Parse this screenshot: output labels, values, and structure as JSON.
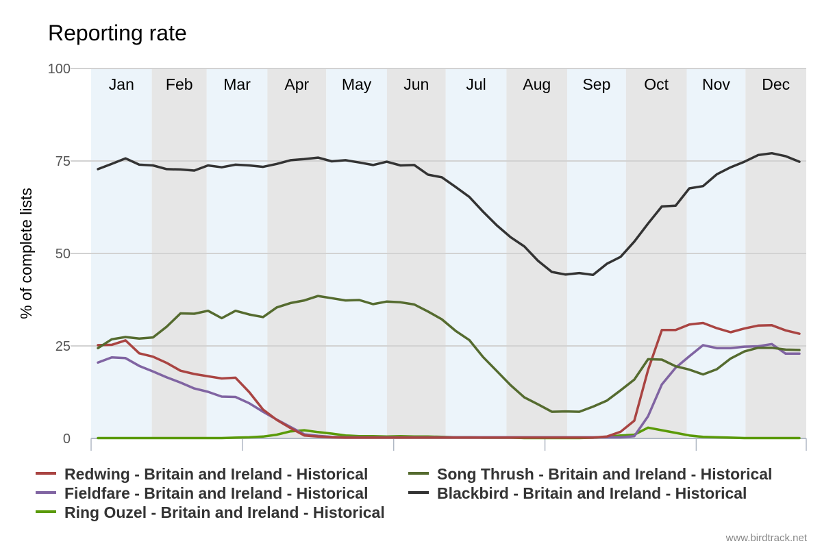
{
  "chart_data": {
    "type": "line",
    "title": "Reporting rate",
    "xlabel": "",
    "ylabel": "% of complete lists",
    "ylim": [
      0,
      100
    ],
    "yticks": [
      0,
      25,
      50,
      75,
      100
    ],
    "months": [
      "Jan",
      "Feb",
      "Mar",
      "Apr",
      "May",
      "Jun",
      "Jul",
      "Aug",
      "Sep",
      "Oct",
      "Nov",
      "Dec"
    ],
    "x_weeks": [
      1,
      2,
      3,
      4,
      5,
      6,
      7,
      8,
      9,
      10,
      11,
      12,
      13,
      14,
      15,
      16,
      17,
      18,
      19,
      20,
      21,
      22,
      23,
      24,
      25,
      26,
      27,
      28,
      29,
      30,
      31,
      32,
      33,
      34,
      35,
      36,
      37,
      38,
      39,
      40,
      41,
      42,
      43,
      44,
      45,
      46,
      47,
      48,
      49,
      50,
      51,
      52
    ],
    "band_colors": [
      "#ecf4fa",
      "#e6e6e6"
    ],
    "series": [
      {
        "name": "Redwing - Britain and Ireland - Historical",
        "color": "#a94442",
        "values": [
          25.2,
          25.3,
          26.5,
          23.0,
          22.1,
          20.4,
          18.3,
          17.4,
          16.8,
          16.2,
          16.4,
          12.5,
          7.8,
          5.0,
          2.8,
          0.8,
          0.5,
          0.3,
          0.2,
          0.2,
          0.2,
          0.2,
          0.2,
          0.2,
          0.2,
          0.2,
          0.2,
          0.2,
          0.2,
          0.2,
          0.2,
          0.2,
          0.2,
          0.2,
          0.2,
          0.2,
          0.2,
          0.5,
          1.8,
          4.8,
          18.5,
          29.3,
          29.3,
          30.8,
          31.2,
          29.8,
          28.7,
          29.7,
          30.5,
          30.6,
          29.2,
          28.3
        ]
      },
      {
        "name": "Song Thrush - Britain and Ireland - Historical",
        "color": "#556b2f",
        "values": [
          24.4,
          26.8,
          27.4,
          27.0,
          27.3,
          30.2,
          33.8,
          33.7,
          34.5,
          32.5,
          34.5,
          33.5,
          32.8,
          35.4,
          36.6,
          37.3,
          38.5,
          37.9,
          37.3,
          37.4,
          36.3,
          37.0,
          36.8,
          36.2,
          34.3,
          32.2,
          29.1,
          26.6,
          22.0,
          18.2,
          14.4,
          11.1,
          9.2,
          7.2,
          7.3,
          7.2,
          8.6,
          10.2,
          13.0,
          15.9,
          21.4,
          21.3,
          19.5,
          18.6,
          17.3,
          18.7,
          21.6,
          23.5,
          24.5,
          24.5,
          24.0,
          23.9
        ]
      },
      {
        "name": "Fieldfare - Britain and Ireland - Historical",
        "color": "#8064a2",
        "values": [
          20.5,
          21.9,
          21.7,
          19.6,
          18.1,
          16.5,
          15.1,
          13.5,
          12.6,
          11.3,
          11.2,
          9.5,
          7.2,
          5.1,
          3.1,
          1.1,
          0.7,
          0.4,
          0.3,
          0.3,
          0.3,
          0.3,
          0.3,
          0.3,
          0.3,
          0.3,
          0.3,
          0.3,
          0.3,
          0.3,
          0.3,
          0.3,
          0.3,
          0.3,
          0.3,
          0.3,
          0.3,
          0.3,
          0.3,
          0.6,
          6.0,
          14.6,
          19.1,
          22.2,
          25.2,
          24.4,
          24.4,
          24.8,
          24.9,
          25.5,
          22.9,
          22.9
        ]
      },
      {
        "name": "Blackbird - Britain and Ireland - Historical",
        "color": "#333333",
        "values": [
          72.8,
          74.2,
          75.7,
          74.0,
          73.8,
          72.8,
          72.7,
          72.4,
          73.8,
          73.3,
          74.0,
          73.8,
          73.4,
          74.2,
          75.2,
          75.5,
          75.9,
          74.9,
          75.2,
          74.6,
          73.9,
          74.8,
          73.8,
          73.9,
          71.3,
          70.6,
          68.0,
          65.3,
          61.3,
          57.6,
          54.4,
          51.9,
          48.0,
          45.0,
          44.3,
          44.7,
          44.2,
          47.2,
          49.1,
          53.2,
          58.1,
          62.7,
          62.9,
          67.6,
          68.2,
          71.4,
          73.3,
          74.8,
          76.6,
          77.1,
          76.3,
          74.8
        ]
      },
      {
        "name": "Ring Ouzel - Britain and Ireland - Historical",
        "color": "#5a9a08",
        "values": [
          0.1,
          0.1,
          0.1,
          0.1,
          0.1,
          0.1,
          0.1,
          0.1,
          0.1,
          0.1,
          0.2,
          0.3,
          0.5,
          1.0,
          1.9,
          2.2,
          1.7,
          1.3,
          0.8,
          0.6,
          0.6,
          0.5,
          0.6,
          0.5,
          0.5,
          0.4,
          0.3,
          0.3,
          0.2,
          0.2,
          0.2,
          0.1,
          0.1,
          0.1,
          0.1,
          0.1,
          0.2,
          0.4,
          0.8,
          1.0,
          2.9,
          2.2,
          1.5,
          0.8,
          0.4,
          0.3,
          0.2,
          0.1,
          0.1,
          0.1,
          0.1,
          0.1
        ]
      }
    ],
    "legend_position": "bottom",
    "credit": "www.birdtrack.net"
  }
}
